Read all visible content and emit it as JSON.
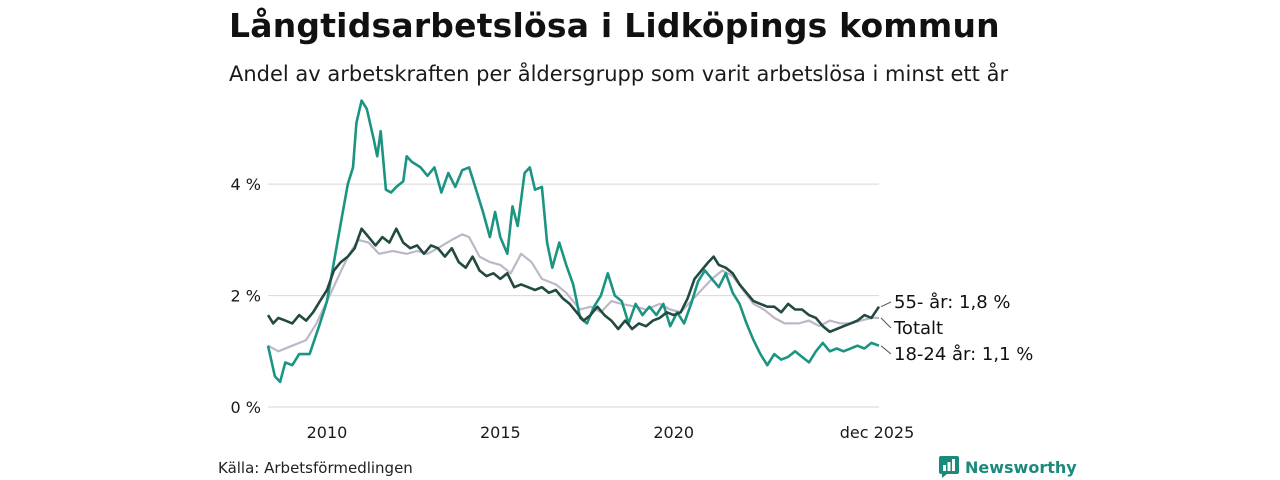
{
  "title": "Långtidsarbetslösa i Lidköpings kommun",
  "subtitle": "Andel av arbetskraften per åldersgrupp som varit arbetslösa i minst ett år",
  "source": "Källa: Arbetsförmedlingen",
  "brand": "Newsworthy",
  "colors": {
    "series_55": "#234a40",
    "series_total": "#bdb8c8",
    "series_1824": "#1b9482",
    "grid": "#dddddd",
    "brand": "#1a8a7b"
  },
  "chart_data": {
    "type": "line",
    "title": "Långtidsarbetslösa i Lidköpings kommun",
    "xlabel": "",
    "ylabel": "",
    "xlim": [
      2008.3,
      2025.92
    ],
    "ylim": [
      0,
      5.6
    ],
    "y_ticks": [
      {
        "value": 0,
        "label": "0 %"
      },
      {
        "value": 2,
        "label": "2 %"
      },
      {
        "value": 4,
        "label": "4 %"
      }
    ],
    "x_ticks": [
      {
        "value": 2010,
        "label": "2010"
      },
      {
        "value": 2015,
        "label": "2015"
      },
      {
        "value": 2020,
        "label": "2020"
      },
      {
        "value": 2025.92,
        "label": "dec 2025"
      }
    ],
    "series": [
      {
        "name": "Totalt",
        "end_label": "Totalt",
        "color_key": "series_total",
        "points": [
          [
            2008.3,
            1.1
          ],
          [
            2008.6,
            1.0
          ],
          [
            2009.0,
            1.1
          ],
          [
            2009.4,
            1.2
          ],
          [
            2009.7,
            1.5
          ],
          [
            2010.0,
            1.9
          ],
          [
            2010.3,
            2.3
          ],
          [
            2010.6,
            2.7
          ],
          [
            2010.9,
            3.0
          ],
          [
            2011.2,
            2.95
          ],
          [
            2011.5,
            2.75
          ],
          [
            2011.9,
            2.8
          ],
          [
            2012.3,
            2.75
          ],
          [
            2012.6,
            2.8
          ],
          [
            2012.9,
            2.75
          ],
          [
            2013.2,
            2.85
          ],
          [
            2013.6,
            3.0
          ],
          [
            2013.9,
            3.1
          ],
          [
            2014.1,
            3.05
          ],
          [
            2014.4,
            2.7
          ],
          [
            2014.7,
            2.6
          ],
          [
            2015.0,
            2.55
          ],
          [
            2015.3,
            2.4
          ],
          [
            2015.6,
            2.75
          ],
          [
            2015.9,
            2.6
          ],
          [
            2016.2,
            2.3
          ],
          [
            2016.6,
            2.2
          ],
          [
            2016.9,
            2.05
          ],
          [
            2017.3,
            1.75
          ],
          [
            2017.6,
            1.8
          ],
          [
            2017.9,
            1.7
          ],
          [
            2018.2,
            1.9
          ],
          [
            2018.5,
            1.85
          ],
          [
            2018.9,
            1.8
          ],
          [
            2019.2,
            1.75
          ],
          [
            2019.6,
            1.85
          ],
          [
            2019.9,
            1.75
          ],
          [
            2020.2,
            1.7
          ],
          [
            2020.5,
            1.9
          ],
          [
            2020.8,
            2.1
          ],
          [
            2021.1,
            2.3
          ],
          [
            2021.4,
            2.45
          ],
          [
            2021.7,
            2.35
          ],
          [
            2022.0,
            2.1
          ],
          [
            2022.3,
            1.85
          ],
          [
            2022.6,
            1.75
          ],
          [
            2022.9,
            1.6
          ],
          [
            2023.2,
            1.5
          ],
          [
            2023.6,
            1.5
          ],
          [
            2023.9,
            1.55
          ],
          [
            2024.2,
            1.45
          ],
          [
            2024.5,
            1.55
          ],
          [
            2024.8,
            1.5
          ],
          [
            2025.1,
            1.5
          ],
          [
            2025.4,
            1.55
          ],
          [
            2025.7,
            1.6
          ],
          [
            2025.92,
            1.6
          ]
        ]
      },
      {
        "name": "18-24 år",
        "end_label": "18-24 år: 1,1 %",
        "color_key": "series_1824",
        "points": [
          [
            2008.3,
            1.1
          ],
          [
            2008.5,
            0.55
          ],
          [
            2008.65,
            0.45
          ],
          [
            2008.8,
            0.8
          ],
          [
            2009.0,
            0.75
          ],
          [
            2009.2,
            0.95
          ],
          [
            2009.5,
            0.95
          ],
          [
            2009.8,
            1.5
          ],
          [
            2010.0,
            1.9
          ],
          [
            2010.2,
            2.6
          ],
          [
            2010.4,
            3.3
          ],
          [
            2010.6,
            4.0
          ],
          [
            2010.75,
            4.3
          ],
          [
            2010.85,
            5.1
          ],
          [
            2011.0,
            5.5
          ],
          [
            2011.15,
            5.35
          ],
          [
            2011.35,
            4.8
          ],
          [
            2011.45,
            4.5
          ],
          [
            2011.55,
            4.95
          ],
          [
            2011.7,
            3.9
          ],
          [
            2011.85,
            3.85
          ],
          [
            2012.0,
            3.95
          ],
          [
            2012.2,
            4.05
          ],
          [
            2012.3,
            4.5
          ],
          [
            2012.45,
            4.4
          ],
          [
            2012.7,
            4.3
          ],
          [
            2012.9,
            4.15
          ],
          [
            2013.1,
            4.3
          ],
          [
            2013.3,
            3.85
          ],
          [
            2013.5,
            4.2
          ],
          [
            2013.7,
            3.95
          ],
          [
            2013.9,
            4.25
          ],
          [
            2014.1,
            4.3
          ],
          [
            2014.3,
            3.9
          ],
          [
            2014.5,
            3.5
          ],
          [
            2014.7,
            3.05
          ],
          [
            2014.85,
            3.5
          ],
          [
            2015.0,
            3.05
          ],
          [
            2015.2,
            2.75
          ],
          [
            2015.35,
            3.6
          ],
          [
            2015.5,
            3.25
          ],
          [
            2015.7,
            4.2
          ],
          [
            2015.85,
            4.3
          ],
          [
            2016.0,
            3.9
          ],
          [
            2016.2,
            3.95
          ],
          [
            2016.35,
            2.95
          ],
          [
            2016.5,
            2.5
          ],
          [
            2016.7,
            2.95
          ],
          [
            2016.9,
            2.55
          ],
          [
            2017.1,
            2.2
          ],
          [
            2017.3,
            1.6
          ],
          [
            2017.5,
            1.5
          ],
          [
            2017.7,
            1.8
          ],
          [
            2017.9,
            2.0
          ],
          [
            2018.1,
            2.4
          ],
          [
            2018.3,
            2.0
          ],
          [
            2018.5,
            1.9
          ],
          [
            2018.7,
            1.5
          ],
          [
            2018.9,
            1.85
          ],
          [
            2019.1,
            1.65
          ],
          [
            2019.3,
            1.8
          ],
          [
            2019.5,
            1.65
          ],
          [
            2019.7,
            1.85
          ],
          [
            2019.9,
            1.45
          ],
          [
            2020.1,
            1.7
          ],
          [
            2020.3,
            1.5
          ],
          [
            2020.5,
            1.85
          ],
          [
            2020.7,
            2.25
          ],
          [
            2020.9,
            2.45
          ],
          [
            2021.1,
            2.3
          ],
          [
            2021.3,
            2.15
          ],
          [
            2021.5,
            2.4
          ],
          [
            2021.7,
            2.05
          ],
          [
            2021.9,
            1.85
          ],
          [
            2022.1,
            1.5
          ],
          [
            2022.3,
            1.2
          ],
          [
            2022.5,
            0.95
          ],
          [
            2022.7,
            0.75
          ],
          [
            2022.9,
            0.95
          ],
          [
            2023.1,
            0.85
          ],
          [
            2023.3,
            0.9
          ],
          [
            2023.5,
            1.0
          ],
          [
            2023.7,
            0.9
          ],
          [
            2023.9,
            0.8
          ],
          [
            2024.1,
            1.0
          ],
          [
            2024.3,
            1.15
          ],
          [
            2024.5,
            1.0
          ],
          [
            2024.7,
            1.05
          ],
          [
            2024.9,
            1.0
          ],
          [
            2025.1,
            1.05
          ],
          [
            2025.3,
            1.1
          ],
          [
            2025.5,
            1.05
          ],
          [
            2025.7,
            1.15
          ],
          [
            2025.92,
            1.1
          ]
        ]
      },
      {
        "name": "55- år",
        "end_label": "55- år: 1,8 %",
        "color_key": "series_55",
        "points": [
          [
            2008.3,
            1.65
          ],
          [
            2008.45,
            1.5
          ],
          [
            2008.6,
            1.6
          ],
          [
            2008.8,
            1.55
          ],
          [
            2009.0,
            1.5
          ],
          [
            2009.2,
            1.65
          ],
          [
            2009.4,
            1.55
          ],
          [
            2009.6,
            1.7
          ],
          [
            2009.8,
            1.9
          ],
          [
            2010.0,
            2.1
          ],
          [
            2010.2,
            2.45
          ],
          [
            2010.4,
            2.6
          ],
          [
            2010.6,
            2.7
          ],
          [
            2010.8,
            2.85
          ],
          [
            2011.0,
            3.2
          ],
          [
            2011.2,
            3.05
          ],
          [
            2011.4,
            2.9
          ],
          [
            2011.6,
            3.05
          ],
          [
            2011.8,
            2.95
          ],
          [
            2012.0,
            3.2
          ],
          [
            2012.2,
            2.95
          ],
          [
            2012.4,
            2.85
          ],
          [
            2012.6,
            2.9
          ],
          [
            2012.8,
            2.75
          ],
          [
            2013.0,
            2.9
          ],
          [
            2013.2,
            2.85
          ],
          [
            2013.4,
            2.7
          ],
          [
            2013.6,
            2.85
          ],
          [
            2013.8,
            2.6
          ],
          [
            2014.0,
            2.5
          ],
          [
            2014.2,
            2.7
          ],
          [
            2014.4,
            2.45
          ],
          [
            2014.6,
            2.35
          ],
          [
            2014.8,
            2.4
          ],
          [
            2015.0,
            2.3
          ],
          [
            2015.2,
            2.4
          ],
          [
            2015.4,
            2.15
          ],
          [
            2015.6,
            2.2
          ],
          [
            2015.8,
            2.15
          ],
          [
            2016.0,
            2.1
          ],
          [
            2016.2,
            2.15
          ],
          [
            2016.4,
            2.05
          ],
          [
            2016.6,
            2.1
          ],
          [
            2016.8,
            1.95
          ],
          [
            2017.0,
            1.85
          ],
          [
            2017.2,
            1.7
          ],
          [
            2017.4,
            1.55
          ],
          [
            2017.6,
            1.65
          ],
          [
            2017.8,
            1.8
          ],
          [
            2018.0,
            1.65
          ],
          [
            2018.2,
            1.55
          ],
          [
            2018.4,
            1.4
          ],
          [
            2018.6,
            1.55
          ],
          [
            2018.8,
            1.4
          ],
          [
            2019.0,
            1.5
          ],
          [
            2019.2,
            1.45
          ],
          [
            2019.4,
            1.55
          ],
          [
            2019.6,
            1.6
          ],
          [
            2019.8,
            1.7
          ],
          [
            2020.0,
            1.65
          ],
          [
            2020.2,
            1.7
          ],
          [
            2020.4,
            1.95
          ],
          [
            2020.6,
            2.3
          ],
          [
            2020.8,
            2.45
          ],
          [
            2021.0,
            2.6
          ],
          [
            2021.15,
            2.7
          ],
          [
            2021.3,
            2.55
          ],
          [
            2021.5,
            2.5
          ],
          [
            2021.7,
            2.4
          ],
          [
            2021.9,
            2.2
          ],
          [
            2022.1,
            2.05
          ],
          [
            2022.3,
            1.9
          ],
          [
            2022.5,
            1.85
          ],
          [
            2022.7,
            1.8
          ],
          [
            2022.9,
            1.8
          ],
          [
            2023.1,
            1.7
          ],
          [
            2023.3,
            1.85
          ],
          [
            2023.5,
            1.75
          ],
          [
            2023.7,
            1.75
          ],
          [
            2023.9,
            1.65
          ],
          [
            2024.1,
            1.6
          ],
          [
            2024.3,
            1.45
          ],
          [
            2024.5,
            1.35
          ],
          [
            2024.7,
            1.4
          ],
          [
            2024.9,
            1.45
          ],
          [
            2025.1,
            1.5
          ],
          [
            2025.3,
            1.55
          ],
          [
            2025.5,
            1.65
          ],
          [
            2025.7,
            1.6
          ],
          [
            2025.92,
            1.8
          ]
        ]
      }
    ]
  }
}
